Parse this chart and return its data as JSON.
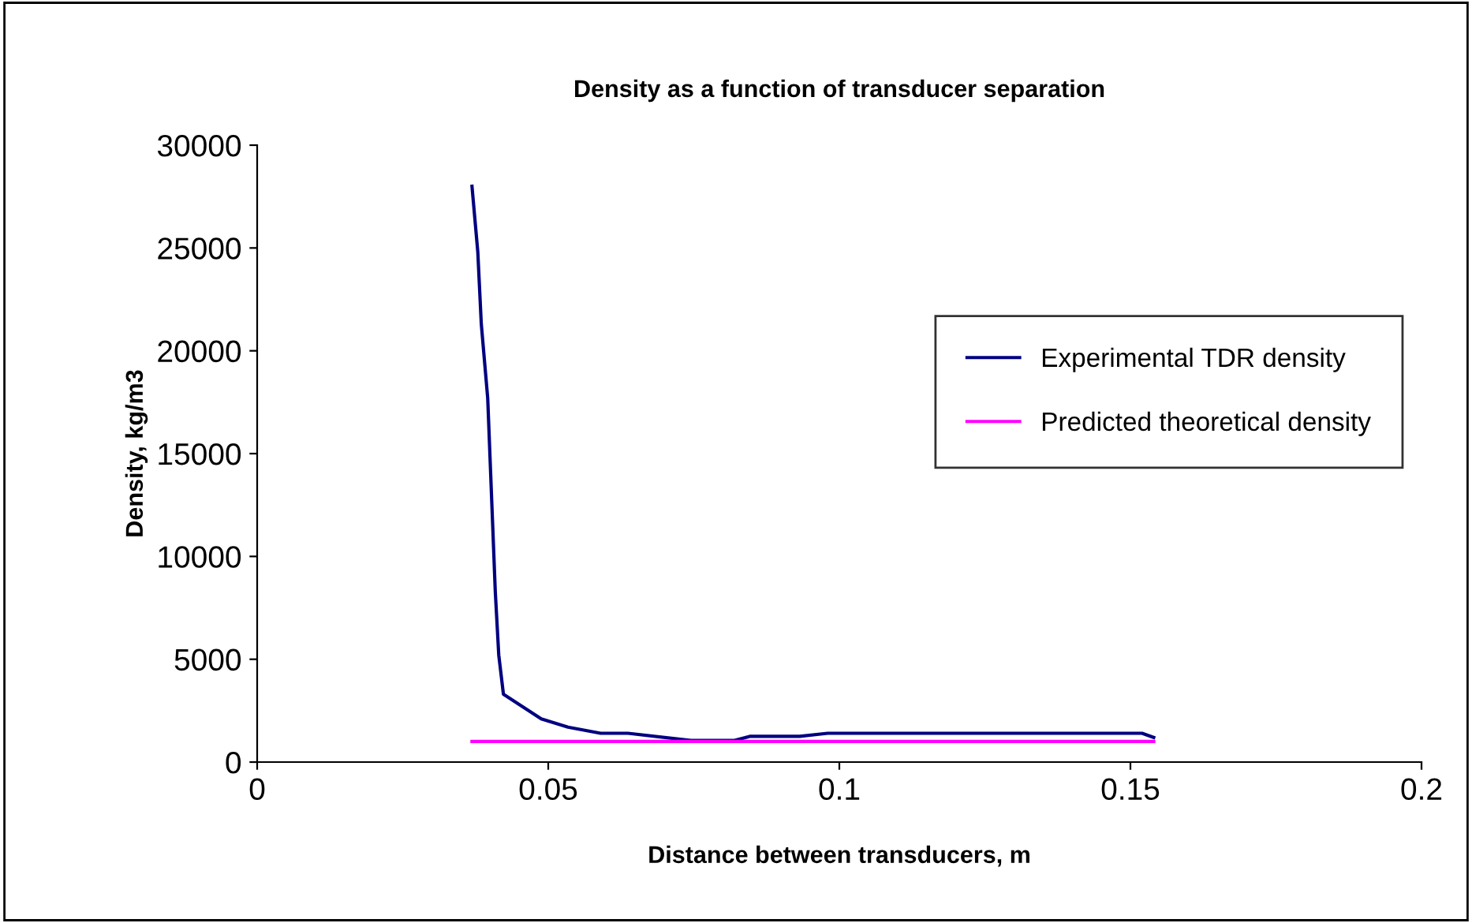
{
  "chart_data": {
    "type": "line",
    "title": "Density as a function of transducer separation",
    "xlabel": "Distance between transducers, m",
    "ylabel": "Density, kg/m3",
    "xlim": [
      0,
      0.2
    ],
    "xticks": [
      0,
      0.05,
      0.1,
      0.15,
      0.2
    ],
    "ylim": [
      0,
      30000
    ],
    "yticks": [
      0,
      5000,
      10000,
      15000,
      20000,
      25000,
      30000
    ],
    "grid": false,
    "legend": "right",
    "marker": "none",
    "line_style": "solid",
    "series": [
      {
        "name": "Experimental TDR density",
        "color": "#000080",
        "x": [
          0.0369,
          0.0379,
          0.0385,
          0.0396,
          0.04,
          0.0409,
          0.0415,
          0.0423,
          0.0488,
          0.0534,
          0.059,
          0.0637,
          0.0745,
          0.082,
          0.0846,
          0.0932,
          0.098,
          0.152,
          0.154
        ],
        "values": [
          28000,
          24800,
          21300,
          17700,
          14800,
          8300,
          5200,
          3300,
          2100,
          1700,
          1400,
          1400,
          1050,
          1050,
          1250,
          1250,
          1400,
          1400,
          1200
        ]
      },
      {
        "name": "Predicted theoretical density",
        "color": "#ff00ff",
        "x": [
          0.0369,
          0.154
        ],
        "values": [
          1000,
          1000
        ]
      }
    ]
  }
}
